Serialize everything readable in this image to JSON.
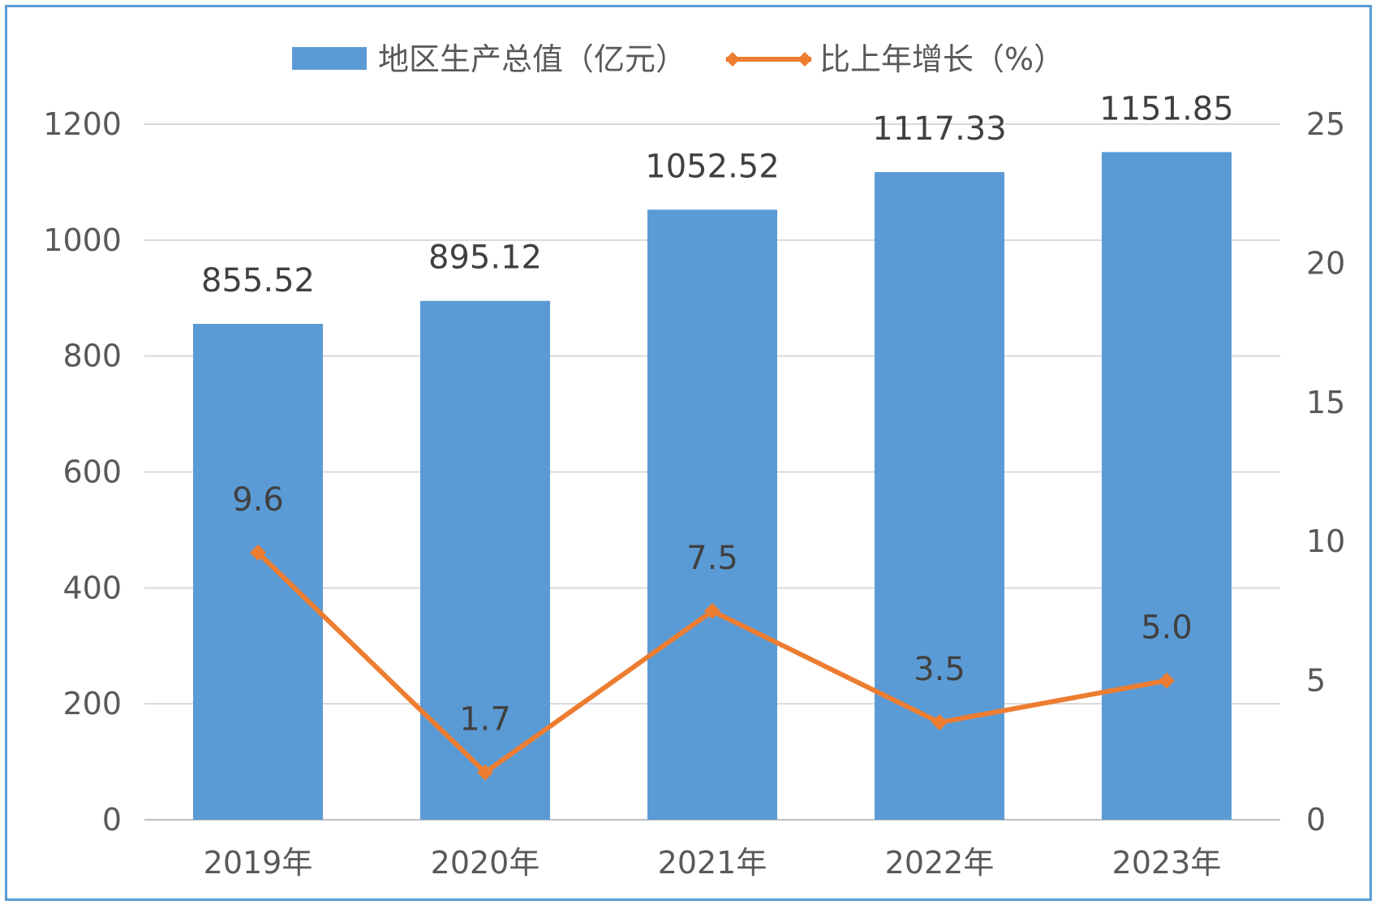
{
  "chart_data": {
    "type": "bar",
    "categories": [
      "2019年",
      "2020年",
      "2021年",
      "2022年",
      "2023年"
    ],
    "series": [
      {
        "name": "地区生产总值（亿元）",
        "type": "bar",
        "axis": "left",
        "color": "#5b9bd5",
        "values": [
          855.52,
          895.12,
          1052.52,
          1117.33,
          1151.85
        ],
        "labels": [
          "855.52",
          "895.12",
          "1052.52",
          "1117.33",
          "1151.85"
        ]
      },
      {
        "name": "比上年增长（%）",
        "type": "line",
        "axis": "right",
        "color": "#ed7d31",
        "values": [
          9.6,
          1.7,
          7.5,
          3.5,
          5.0
        ],
        "labels": [
          "9.6",
          "1.7",
          "7.5",
          "3.5",
          "5.0"
        ]
      }
    ],
    "left_axis": {
      "range": [
        0,
        1200
      ],
      "ticks": [
        "0",
        "200",
        "400",
        "600",
        "800",
        "1000",
        "1200"
      ]
    },
    "right_axis": {
      "range": [
        0,
        25
      ],
      "ticks": [
        "0",
        "5",
        "10",
        "15",
        "20",
        "25"
      ]
    },
    "grid": true,
    "legend_position": "top"
  }
}
